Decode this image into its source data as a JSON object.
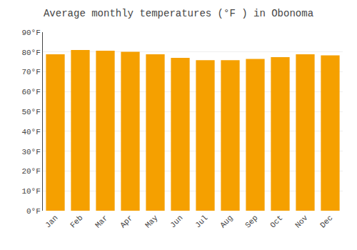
{
  "chart_data": {
    "type": "bar",
    "title": "Average monthly temperatures (°F ) in Obonoma",
    "categories": [
      "Jan",
      "Feb",
      "Mar",
      "Apr",
      "May",
      "Jun",
      "Jul",
      "Aug",
      "Sep",
      "Oct",
      "Nov",
      "Dec"
    ],
    "values": [
      78.8,
      81.0,
      80.6,
      80.1,
      78.8,
      77.0,
      75.9,
      75.9,
      76.5,
      77.4,
      78.8,
      78.3
    ],
    "color": "#F5A000",
    "ylim": [
      0,
      90
    ],
    "yticks": [
      {
        "value": 0,
        "label": "0°F"
      },
      {
        "value": 10,
        "label": "10°F"
      },
      {
        "value": 20,
        "label": "20°F"
      },
      {
        "value": 30,
        "label": "30°F"
      },
      {
        "value": 40,
        "label": "40°F"
      },
      {
        "value": 50,
        "label": "50°F"
      },
      {
        "value": 60,
        "label": "60°F"
      },
      {
        "value": 70,
        "label": "70°F"
      },
      {
        "value": 80,
        "label": "80°F"
      },
      {
        "value": 90,
        "label": "90°F"
      }
    ],
    "grid": true
  }
}
